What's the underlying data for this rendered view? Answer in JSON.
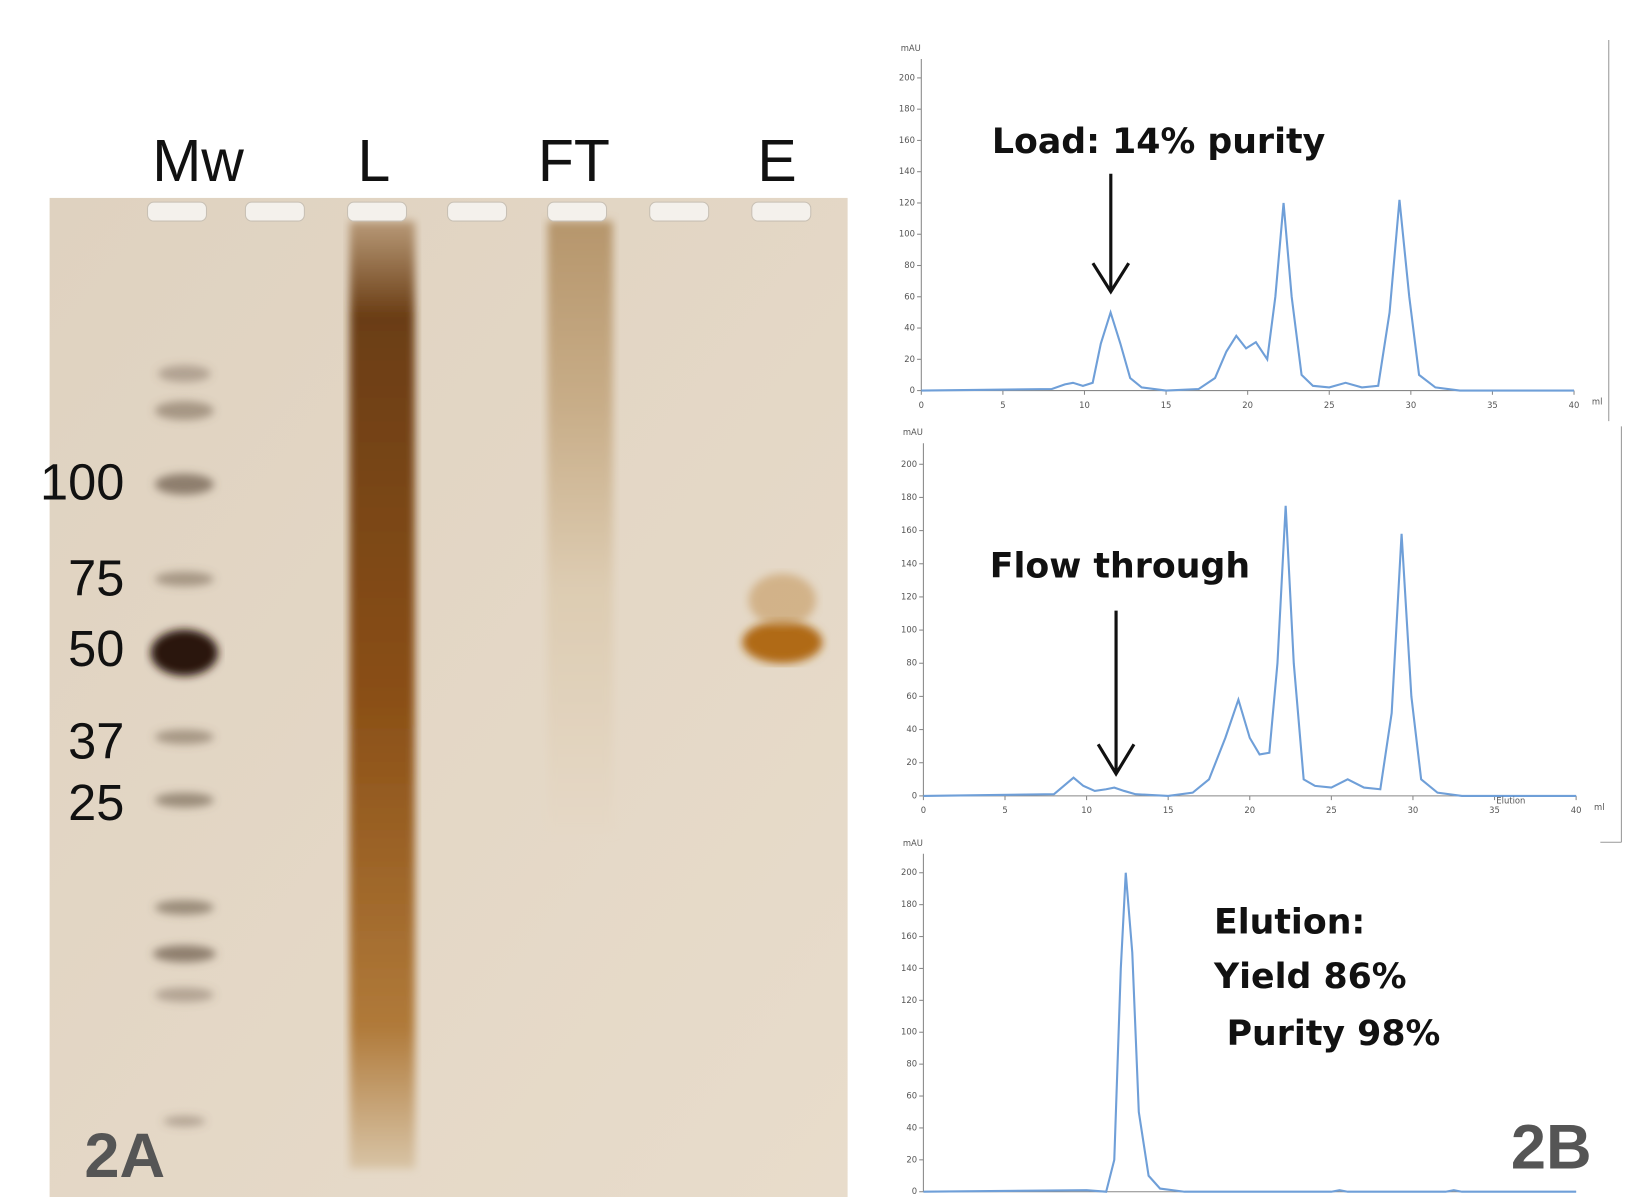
{
  "gel": {
    "lane_labels": [
      "Mw",
      "L",
      "FT",
      "E"
    ],
    "marker_labels": [
      "100",
      "75",
      "50",
      "37",
      "25"
    ],
    "panel_label": "2A"
  },
  "panel_label": "2B",
  "chart_data": [
    {
      "type": "line",
      "y_label": "mAU",
      "x_label": "ml",
      "color": "#6f9fd8",
      "annotations": [
        "Load: 14% purity"
      ],
      "xlim": [
        0,
        40
      ],
      "xticks": [
        0,
        5,
        10,
        15,
        20,
        25,
        30,
        35,
        40
      ],
      "ylim": [
        0,
        200
      ],
      "yticks": [
        0,
        20,
        40,
        60,
        80,
        100,
        120,
        140,
        160,
        180,
        200
      ],
      "x": [
        0,
        8,
        8.8,
        9.3,
        9.9,
        10.5,
        11,
        11.6,
        12.2,
        12.8,
        13.5,
        15,
        17,
        18,
        18.7,
        19.3,
        19.9,
        20.5,
        21.2,
        21.7,
        22.2,
        22.7,
        23.3,
        24,
        25,
        26,
        27,
        28,
        28.7,
        29.3,
        29.9,
        30.5,
        31.5,
        33,
        40
      ],
      "values": [
        0,
        1,
        4,
        5,
        3,
        5,
        30,
        50,
        30,
        8,
        2,
        0,
        1,
        8,
        25,
        35,
        27,
        31,
        20,
        60,
        120,
        60,
        10,
        3,
        2,
        5,
        2,
        3,
        50,
        122,
        60,
        10,
        2,
        0,
        0
      ]
    },
    {
      "type": "line",
      "y_label": "mAU",
      "x_label": "ml",
      "color": "#6f9fd8",
      "annotations": [
        "Flow through",
        "Elution"
      ],
      "xlim": [
        0,
        40
      ],
      "xticks": [
        0,
        5,
        10,
        15,
        20,
        25,
        30,
        35,
        40
      ],
      "ylim": [
        0,
        200
      ],
      "yticks": [
        0,
        20,
        40,
        60,
        80,
        100,
        120,
        140,
        160,
        180,
        200
      ],
      "x": [
        0,
        8,
        8.6,
        9.2,
        9.8,
        10.5,
        11.2,
        11.7,
        12.3,
        13,
        15,
        16.5,
        17.5,
        18.5,
        19.3,
        20,
        20.6,
        21.2,
        21.7,
        22.2,
        22.7,
        23.3,
        24,
        25,
        26,
        27,
        28,
        28.7,
        29.3,
        29.9,
        30.5,
        31.5,
        33,
        40
      ],
      "values": [
        0,
        1,
        6,
        11,
        6,
        3,
        4,
        5,
        3,
        1,
        0,
        2,
        10,
        35,
        58,
        35,
        25,
        26,
        80,
        175,
        80,
        10,
        6,
        5,
        10,
        5,
        4,
        50,
        158,
        60,
        10,
        2,
        0,
        0
      ]
    },
    {
      "type": "line",
      "y_label": "mAU",
      "color": "#6f9fd8",
      "annotations": [
        "Elution:",
        "Yield 86%",
        "Purity 98%"
      ],
      "xlim": [
        0,
        40
      ],
      "ylim": [
        0,
        200
      ],
      "yticks": [
        0,
        20,
        40,
        60,
        80,
        100,
        120,
        140,
        160,
        180,
        200
      ],
      "x": [
        0,
        10,
        11.2,
        11.7,
        12.1,
        12.4,
        12.8,
        13.2,
        13.8,
        14.5,
        16,
        25,
        25.5,
        26,
        32,
        32.5,
        33,
        40
      ],
      "values": [
        0,
        1,
        0,
        20,
        140,
        200,
        150,
        50,
        10,
        2,
        0,
        0,
        1,
        0,
        0,
        1,
        0,
        0
      ]
    }
  ]
}
